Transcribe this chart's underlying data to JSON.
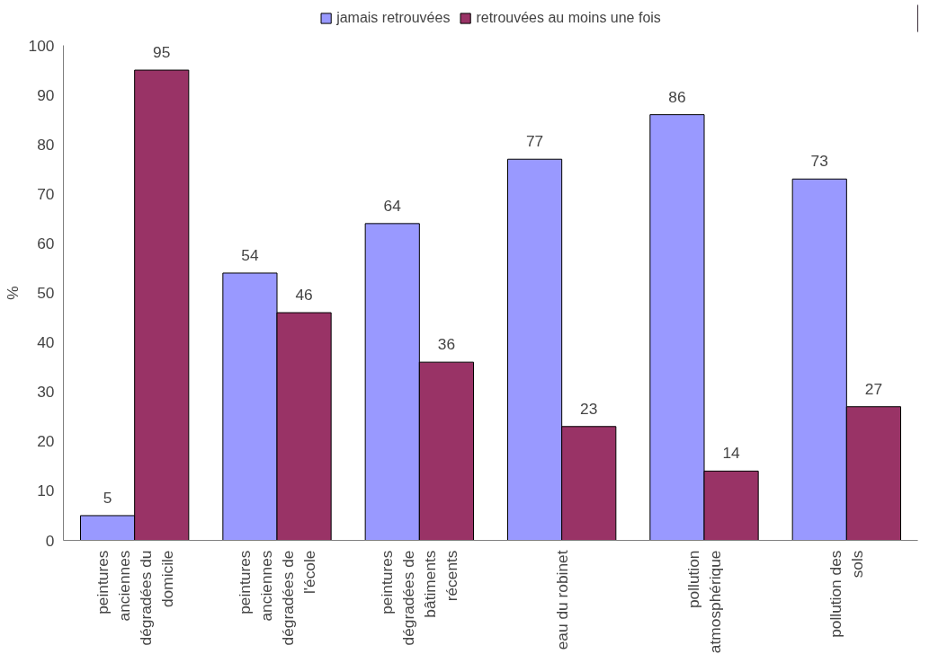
{
  "chart_data": {
    "type": "bar",
    "categories": [
      "peintures\nanciennes\ndégradées du\ndomicile",
      "peintures\nanciennes\ndégradées de\nl'école",
      "peintures\ndégradées de\nbâtiments\nrécents",
      "eau du robinet",
      "pollution\natmosphérique",
      "pollution des\nsols"
    ],
    "series": [
      {
        "name": "jamais retrouvées",
        "color": "#9999ff",
        "values": [
          5,
          54,
          64,
          77,
          86,
          73
        ]
      },
      {
        "name": "retrouvées au moins une fois",
        "color": "#993366",
        "values": [
          95,
          46,
          36,
          23,
          14,
          27
        ]
      }
    ],
    "ylabel": "%",
    "ylim": [
      0,
      100
    ],
    "yticks": [
      0,
      10,
      20,
      30,
      40,
      50,
      60,
      70,
      80,
      90,
      100
    ],
    "data_labels": true,
    "legend": "top",
    "grid": false
  }
}
